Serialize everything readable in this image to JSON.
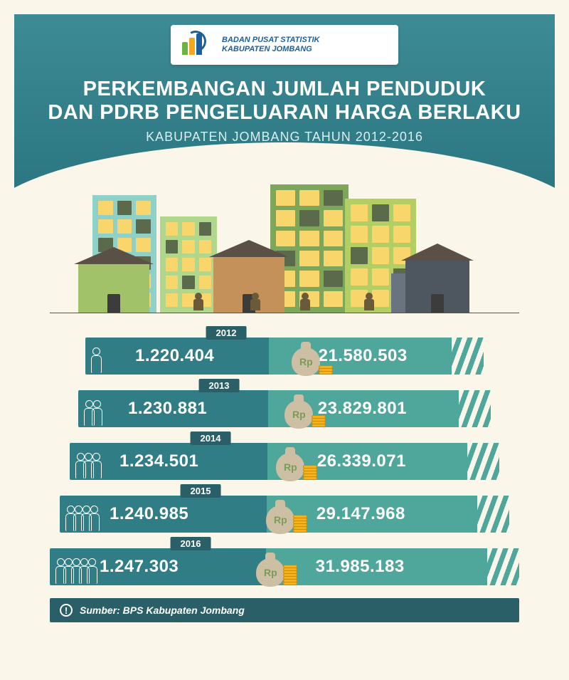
{
  "org": {
    "line1": "BADAN PUSAT STATISTIK",
    "line2": "KABUPATEN JOMBANG"
  },
  "title": {
    "line1": "PERKEMBANGAN JUMLAH PENDUDUK",
    "line2": "DAN PDRB PENGELUARAN HARGA BERLAKU",
    "sub": "KABUPATEN JOMBANG TAHUN 2012-2016"
  },
  "colors": {
    "header_bg": "#2a7580",
    "band_left": "#307d86",
    "band_right": "#4fa69a",
    "year_tab": "#2b5f68",
    "page_bg": "#fbf6ea"
  },
  "currency_label": "Rp",
  "rows": [
    {
      "year": "2012",
      "population": "1.220.404",
      "pdrb": "21.580.503",
      "people_count": 1
    },
    {
      "year": "2013",
      "population": "1.230.881",
      "pdrb": "23.829.801",
      "people_count": 2
    },
    {
      "year": "2014",
      "population": "1.234.501",
      "pdrb": "26.339.071",
      "people_count": 3
    },
    {
      "year": "2015",
      "population": "1.240.985",
      "pdrb": "29.147.968",
      "people_count": 4
    },
    {
      "year": "2016",
      "population": "1.247.303",
      "pdrb": "31.985.183",
      "people_count": 5
    }
  ],
  "footer": {
    "label": "Sumber: BPS Kabupaten Jombang"
  }
}
